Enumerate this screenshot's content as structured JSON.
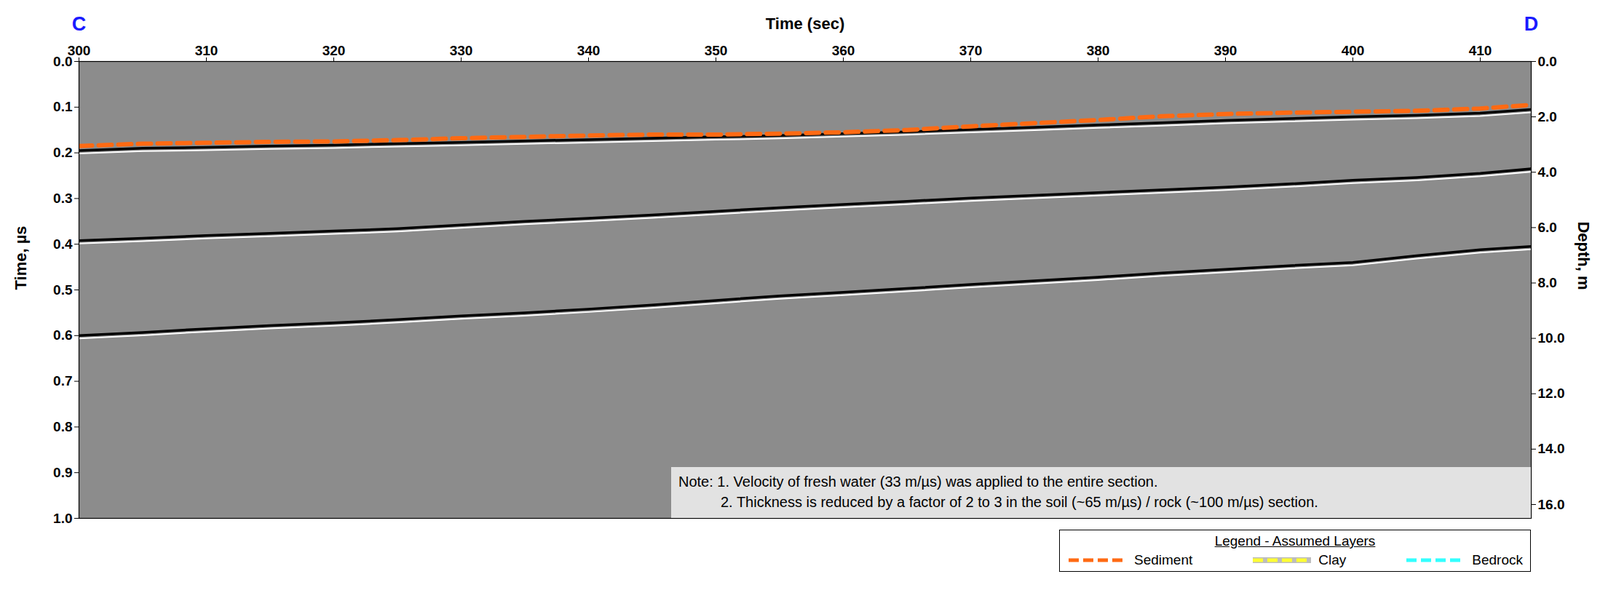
{
  "chart_data": {
    "type": "line",
    "annotations": [
      "C",
      "D"
    ],
    "xlabel": "Time (sec)",
    "ylabel": "Time, µs",
    "y2label": "Depth, m",
    "x": [
      300,
      305,
      310,
      315,
      320,
      325,
      330,
      335,
      340,
      345,
      350,
      355,
      360,
      365,
      370,
      375,
      380,
      385,
      390,
      395,
      400,
      405,
      410,
      414
    ],
    "series": [
      {
        "name": "Sediment",
        "color": "#ff6a13",
        "line_style": "dashed",
        "values": [
          0.185,
          0.18,
          0.178,
          0.176,
          0.175,
          0.172,
          0.168,
          0.165,
          0.162,
          0.16,
          0.16,
          0.158,
          0.155,
          0.15,
          0.142,
          0.135,
          0.128,
          0.12,
          0.115,
          0.112,
          0.11,
          0.108,
          0.103,
          0.095
        ]
      },
      {
        "name": "Clay",
        "color": "#ffff33",
        "line_style": "dashed",
        "values": [
          null,
          null,
          null,
          null,
          null,
          null,
          null,
          null,
          null,
          null,
          null,
          null,
          null,
          null,
          null,
          null,
          null,
          null,
          null,
          null,
          null,
          null,
          null,
          null
        ]
      },
      {
        "name": "Bedrock",
        "color": "#33ffff",
        "line_style": "dashed",
        "values": [
          null,
          null,
          null,
          null,
          null,
          null,
          null,
          null,
          null,
          null,
          null,
          null,
          null,
          null,
          null,
          null,
          null,
          null,
          null,
          null,
          null,
          null,
          null,
          null
        ]
      }
    ],
    "reflectors": [
      {
        "color": "#000000",
        "values": [
          0.195,
          0.19,
          0.188,
          0.185,
          0.183,
          0.18,
          0.177,
          0.174,
          0.171,
          0.168,
          0.165,
          0.162,
          0.158,
          0.154,
          0.149,
          0.144,
          0.139,
          0.134,
          0.129,
          0.125,
          0.121,
          0.118,
          0.113,
          0.105
        ]
      },
      {
        "color": "#000000",
        "values": [
          0.392,
          0.387,
          0.381,
          0.376,
          0.371,
          0.366,
          0.358,
          0.35,
          0.343,
          0.336,
          0.328,
          0.32,
          0.313,
          0.306,
          0.299,
          0.293,
          0.287,
          0.281,
          0.275,
          0.268,
          0.26,
          0.254,
          0.245,
          0.235
        ]
      },
      {
        "color": "#000000",
        "values": [
          0.6,
          0.593,
          0.585,
          0.578,
          0.572,
          0.565,
          0.557,
          0.55,
          0.542,
          0.533,
          0.523,
          0.513,
          0.505,
          0.497,
          0.488,
          0.48,
          0.472,
          0.463,
          0.455,
          0.447,
          0.44,
          0.425,
          0.412,
          0.405
        ]
      }
    ],
    "xlim": [
      300,
      414
    ],
    "xticks": [
      300,
      310,
      320,
      330,
      340,
      350,
      360,
      370,
      380,
      390,
      400,
      410
    ],
    "ylim": [
      0,
      1
    ],
    "yticks": [
      {
        "value": 0,
        "label": "0.0"
      },
      {
        "value": 0.1,
        "label": "0.1"
      },
      {
        "value": 0.2,
        "label": "0.2"
      },
      {
        "value": 0.3,
        "label": "0.3"
      },
      {
        "value": 0.4,
        "label": "0.4"
      },
      {
        "value": 0.5,
        "label": "0.5"
      },
      {
        "value": 0.6,
        "label": "0.6"
      },
      {
        "value": 0.7,
        "label": "0.7"
      },
      {
        "value": 0.8,
        "label": "0.8"
      },
      {
        "value": 0.9,
        "label": "0.9"
      },
      {
        "value": 1,
        "label": "1.0"
      }
    ],
    "y2lim": [
      0,
      16.5
    ],
    "y2ticks": [
      {
        "value": 0,
        "label": "0.0"
      },
      {
        "value": 2,
        "label": "2.0"
      },
      {
        "value": 4,
        "label": "4.0"
      },
      {
        "value": 6,
        "label": "6.0"
      },
      {
        "value": 8,
        "label": "8.0"
      },
      {
        "value": 10,
        "label": "10.0"
      },
      {
        "value": 12,
        "label": "12.0"
      },
      {
        "value": 14,
        "label": "14.0"
      },
      {
        "value": 16,
        "label": "16.0"
      }
    ],
    "notes": [
      "Note: 1. Velocity of fresh water (33 m/µs) was applied to the entire section.",
      "2. Thickness is reduced by a factor of 2 to 3 in the soil (~65 m/µs) / rock (~100 m/µs) section."
    ],
    "legend_title": "Legend - Assumed Layers",
    "legend": "bottom-right",
    "grid": false
  }
}
